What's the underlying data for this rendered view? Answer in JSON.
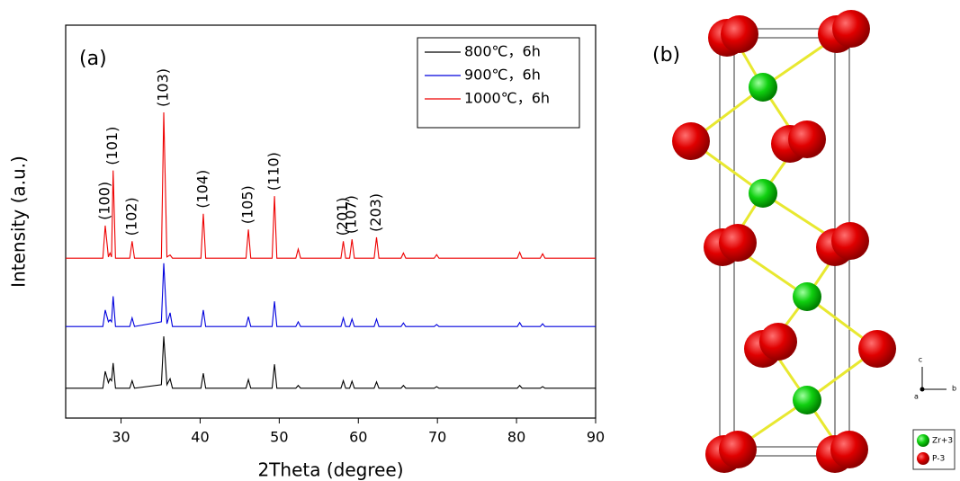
{
  "chart_data": {
    "type": "line",
    "title": "(a)",
    "x_label": "2Theta (degree)",
    "y_label": "Intensity (a.u.)",
    "xlim": [
      23,
      90
    ],
    "xticks": [
      30,
      40,
      50,
      60,
      70,
      80,
      90
    ],
    "ylim": [
      0,
      100
    ],
    "yticks": [],
    "legend": "upper right",
    "x": [
      23,
      27.7,
      28.0,
      28.4,
      28.6,
      28.8,
      29.0,
      29.3,
      31.1,
      31.4,
      31.7,
      35.1,
      35.4,
      35.8,
      36.2,
      36.5,
      40.1,
      40.4,
      40.7,
      45.8,
      46.1,
      46.4,
      49.1,
      49.4,
      49.7,
      52.1,
      52.4,
      52.7,
      57.8,
      58.1,
      58.4,
      58.9,
      59.2,
      59.5,
      62.0,
      62.3,
      62.6,
      65.4,
      65.7,
      66.0,
      69.6,
      69.9,
      70.2,
      80.1,
      80.4,
      80.7,
      83.0,
      83.3,
      83.6,
      90
    ],
    "series": [
      {
        "name": "800℃，6h",
        "color": "#000000",
        "values": [
          7.6,
          7.6,
          11.9,
          9,
          10,
          9.5,
          14,
          7.6,
          7.6,
          9.5,
          7.6,
          8.5,
          20.8,
          8.5,
          10,
          7.6,
          7.6,
          11.4,
          7.6,
          7.6,
          9.8,
          7.6,
          7.6,
          13.7,
          7.6,
          7.6,
          8.3,
          7.6,
          7.6,
          9.5,
          7.6,
          7.6,
          9.4,
          7.6,
          7.6,
          9.2,
          7.6,
          7.6,
          8.3,
          7.6,
          7.6,
          8,
          7.6,
          7.6,
          8.3,
          7.6,
          7.6,
          8,
          7.6,
          7.6
        ]
      },
      {
        "name": "900℃，6h",
        "color": "#0000dd",
        "values": [
          23.3,
          23.3,
          27.5,
          24.5,
          25,
          24.5,
          31,
          23.3,
          23.3,
          25.5,
          23.3,
          24.5,
          39.4,
          24,
          26.8,
          23.3,
          23.3,
          27.5,
          23.3,
          23.3,
          25.8,
          23.3,
          23.3,
          29.7,
          23.3,
          23.3,
          24.5,
          23.3,
          23.3,
          25.5,
          23.3,
          23.3,
          25.2,
          23.3,
          23.3,
          25.2,
          23.3,
          23.3,
          24.2,
          23.3,
          23.3,
          23.8,
          23.3,
          23.3,
          24.3,
          23.3,
          23.3,
          24,
          23.3,
          23.3
        ]
      },
      {
        "name": "1000℃，6h",
        "color": "#ee0000",
        "values": [
          40.7,
          40.7,
          49,
          41,
          42,
          41,
          63,
          40.7,
          40.7,
          45,
          40.7,
          40.7,
          77.8,
          41,
          41.5,
          40.7,
          40.7,
          52,
          40.7,
          40.7,
          48,
          40.7,
          40.7,
          56.5,
          40.7,
          40.7,
          43,
          40.7,
          40.7,
          45,
          40.7,
          40.7,
          45.5,
          40.7,
          40.7,
          46,
          40.7,
          40.7,
          42,
          40.7,
          40.7,
          41.6,
          40.7,
          40.7,
          42.2,
          40.7,
          40.7,
          41.8,
          40.7,
          40.7
        ]
      }
    ],
    "annotations": [
      {
        "text": "(100)",
        "x": 28.0
      },
      {
        "text": "(101)",
        "x": 29.0
      },
      {
        "text": "(102)",
        "x": 31.4
      },
      {
        "text": "(103)",
        "x": 35.4
      },
      {
        "text": "(104)",
        "x": 40.4
      },
      {
        "text": "(105)",
        "x": 46.1
      },
      {
        "text": "(110)",
        "x": 49.4
      },
      {
        "text": "(201)",
        "x": 58.1
      },
      {
        "text": "(107)",
        "x": 59.2
      },
      {
        "text": "(203)",
        "x": 62.3
      }
    ]
  },
  "structure": {
    "label": "(b)",
    "axes": [
      "c",
      "a",
      "b"
    ],
    "legend": [
      "Zr+3",
      "P-3"
    ]
  }
}
